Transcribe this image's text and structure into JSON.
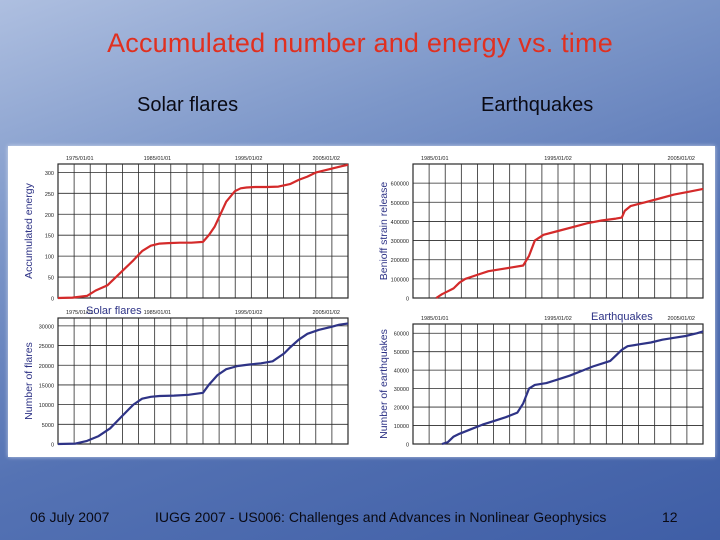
{
  "slide": {
    "title": "Accumulated number and energy vs. time",
    "left_heading": "Solar flares",
    "right_heading": "Earthquakes",
    "footer_date": "06 July 2007",
    "footer_conference": "IUGG 2007 - US006: Challenges and Advances in Nonlinear Geophysics",
    "page_number": "12"
  },
  "colors": {
    "energy_line": "#d42a2a",
    "count_line": "#2e3386",
    "grid": "#2a2a2a",
    "title": "#e03020"
  },
  "chart_data": [
    {
      "id": "solar-energy",
      "type": "line",
      "title": "",
      "ylabel": "Accumulated energy",
      "xlabel": "",
      "top_dates": [
        "1975/01/01",
        "1985/01/01",
        "1995/01/02",
        "2005/01/02"
      ],
      "ylim": [
        0,
        320
      ],
      "yticks": [
        "0",
        "50",
        "100",
        "150",
        "200",
        "250",
        "300"
      ],
      "ytick_values": [
        0,
        50,
        100,
        150,
        200,
        250,
        300
      ],
      "color": "#d42a2a",
      "x": [
        0,
        0.05,
        0.1,
        0.13,
        0.17,
        0.2,
        0.23,
        0.26,
        0.29,
        0.32,
        0.35,
        0.38,
        0.42,
        0.46,
        0.5,
        0.52,
        0.54,
        0.56,
        0.58,
        0.61,
        0.63,
        0.65,
        0.68,
        0.72,
        0.76,
        0.8,
        0.83,
        0.86,
        0.89,
        0.92,
        0.95,
        0.98,
        1.0
      ],
      "y": [
        0,
        1,
        5,
        18,
        30,
        50,
        70,
        90,
        112,
        125,
        130,
        131,
        132,
        132,
        134,
        150,
        170,
        200,
        230,
        255,
        262,
        264,
        265,
        265,
        266,
        272,
        282,
        290,
        300,
        305,
        310,
        315,
        318
      ]
    },
    {
      "id": "solar-count",
      "type": "line",
      "title": "Solar flares",
      "ylabel": "Number of flares",
      "xlabel": "",
      "top_dates": [
        "1975/01/01",
        "1985/01/01",
        "1995/01/02",
        "2005/01/02"
      ],
      "ylim": [
        0,
        32000
      ],
      "yticks": [
        "0",
        "5000",
        "10000",
        "15000",
        "20000",
        "25000",
        "30000"
      ],
      "ytick_values": [
        0,
        5000,
        10000,
        15000,
        20000,
        25000,
        30000
      ],
      "color": "#2e3386",
      "x": [
        0,
        0.06,
        0.1,
        0.14,
        0.18,
        0.22,
        0.26,
        0.29,
        0.32,
        0.35,
        0.4,
        0.45,
        0.5,
        0.52,
        0.55,
        0.58,
        0.62,
        0.66,
        0.7,
        0.74,
        0.78,
        0.8,
        0.83,
        0.86,
        0.9,
        0.94,
        0.97,
        1.0
      ],
      "y": [
        0,
        100,
        800,
        2000,
        4000,
        7000,
        10000,
        11500,
        12000,
        12200,
        12300,
        12500,
        13000,
        15000,
        17500,
        19000,
        19800,
        20200,
        20500,
        21000,
        23000,
        24500,
        26500,
        28000,
        29000,
        29700,
        30300,
        30600
      ]
    },
    {
      "id": "eq-strain",
      "type": "line",
      "title": "",
      "ylabel": "Benioff strain release",
      "xlabel": "",
      "top_dates": [
        "1985/01/01",
        "1995/01/02",
        "2005/01/02"
      ],
      "ylim": [
        0,
        700000
      ],
      "yticks": [
        "0",
        "100000",
        "200000",
        "300000",
        "400000",
        "500000",
        "600000"
      ],
      "ytick_values": [
        0,
        100000,
        200000,
        300000,
        400000,
        500000,
        600000
      ],
      "color": "#d42a2a",
      "x": [
        0.08,
        0.1,
        0.12,
        0.14,
        0.16,
        0.18,
        0.22,
        0.26,
        0.3,
        0.34,
        0.38,
        0.4,
        0.42,
        0.45,
        0.5,
        0.55,
        0.6,
        0.65,
        0.7,
        0.72,
        0.73,
        0.75,
        0.8,
        0.85,
        0.9,
        0.95,
        1.0
      ],
      "y": [
        0,
        20000,
        35000,
        50000,
        80000,
        100000,
        120000,
        140000,
        150000,
        160000,
        170000,
        220000,
        300000,
        330000,
        350000,
        370000,
        390000,
        405000,
        415000,
        420000,
        455000,
        480000,
        500000,
        520000,
        540000,
        555000,
        570000
      ]
    },
    {
      "id": "eq-count",
      "type": "line",
      "title": "Earthquakes",
      "ylabel": "Number of earthquakes",
      "xlabel": "",
      "top_dates": [
        "1985/01/01",
        "1995/01/02",
        "2005/01/02"
      ],
      "ylim": [
        0,
        65000
      ],
      "yticks": [
        "0",
        "10000",
        "20000",
        "30000",
        "40000",
        "50000",
        "60000"
      ],
      "ytick_values": [
        0,
        10000,
        20000,
        30000,
        40000,
        50000,
        60000
      ],
      "color": "#2e3386",
      "x": [
        0.1,
        0.12,
        0.14,
        0.16,
        0.2,
        0.24,
        0.28,
        0.32,
        0.36,
        0.38,
        0.4,
        0.42,
        0.46,
        0.5,
        0.54,
        0.58,
        0.62,
        0.66,
        0.68,
        0.7,
        0.72,
        0.74,
        0.78,
        0.82,
        0.86,
        0.9,
        0.94,
        0.98,
        1.0
      ],
      "y": [
        0,
        1000,
        4000,
        5500,
        8000,
        10500,
        12500,
        14500,
        17000,
        22000,
        30000,
        32000,
        33000,
        35000,
        37000,
        39500,
        42000,
        44000,
        45000,
        48000,
        51000,
        53000,
        54000,
        55000,
        56500,
        57500,
        58500,
        60000,
        61000
      ]
    }
  ]
}
